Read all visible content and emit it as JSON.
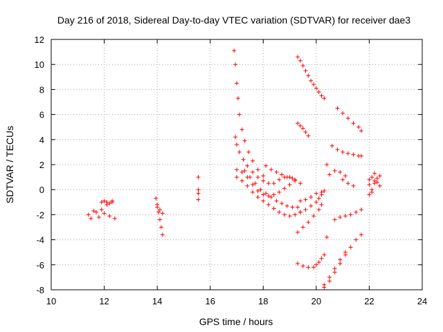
{
  "chart_data": {
    "type": "scatter",
    "title": "Day 216 of 2018, Sidereal Day-to-day VTEC variation (SDTVAR) for receiver dae3",
    "xlabel": "GPS time / hours",
    "ylabel": "SDTVAR / TECUs",
    "xlim": [
      10,
      24
    ],
    "ylim": [
      -8,
      12
    ],
    "xticks": [
      "10",
      "12",
      "14",
      "16",
      "18",
      "20",
      "22",
      "24"
    ],
    "yticks": [
      "-8",
      "-6",
      "-4",
      "-2",
      "0",
      "2",
      "4",
      "6",
      "8",
      "10",
      "12"
    ],
    "grid": true,
    "marker": "plus",
    "color": "#ff0000",
    "segments": [
      {
        "x": [
          11.4,
          11.6,
          11.8,
          12.0,
          12.2,
          12.4
        ],
        "y": [
          -2.0,
          -1.7,
          -2.2,
          -1.9,
          -2.1,
          -2.3
        ]
      },
      {
        "x": [
          11.5,
          11.7,
          11.9,
          12.1,
          12.3
        ],
        "y": [
          -2.3,
          -1.8,
          -1.6,
          -1.2,
          -1.0
        ]
      },
      {
        "x": [
          11.9,
          12.0,
          12.1,
          12.2,
          12.3
        ],
        "y": [
          -1.0,
          -0.9,
          -1.0,
          -1.1,
          -0.9
        ]
      },
      {
        "x": [
          13.95,
          14.0,
          14.05,
          14.1,
          14.15,
          14.2
        ],
        "y": [
          -0.7,
          -1.2,
          -1.8,
          -2.4,
          -3.0,
          -3.6
        ]
      },
      {
        "x": [
          14.0,
          14.1,
          14.2
        ],
        "y": [
          -1.4,
          -1.6,
          -1.9
        ]
      },
      {
        "x": [
          15.55,
          15.55,
          15.55,
          15.55
        ],
        "y": [
          1.0,
          0.0,
          -0.3,
          -0.8
        ]
      },
      {
        "x": [
          16.9,
          16.95,
          17.0,
          17.05,
          17.1,
          17.2,
          17.3,
          17.45,
          17.6,
          17.8,
          18.0
        ],
        "y": [
          11.1,
          10.0,
          8.5,
          7.3,
          6.0,
          4.8,
          3.9,
          3.0,
          2.3,
          1.6,
          1.1
        ]
      },
      {
        "x": [
          16.95,
          17.0,
          17.1,
          17.25,
          17.4,
          17.6,
          17.8,
          18.0,
          18.2
        ],
        "y": [
          4.2,
          3.6,
          3.0,
          2.4,
          1.9,
          1.4,
          1.0,
          0.7,
          0.5
        ]
      },
      {
        "x": [
          17.0,
          17.2,
          17.4,
          17.6,
          17.8,
          18.0,
          18.2,
          18.4,
          18.6,
          18.8,
          19.0,
          19.2
        ],
        "y": [
          1.6,
          1.4,
          1.0,
          0.4,
          -0.1,
          -0.4,
          -0.5,
          -0.4,
          -0.2,
          0.1,
          0.4,
          0.7
        ]
      },
      {
        "x": [
          17.0,
          17.2,
          17.4,
          17.6,
          17.8,
          18.0,
          18.2,
          18.4,
          18.6,
          18.8,
          19.0,
          19.2,
          19.4
        ],
        "y": [
          1.0,
          0.7,
          0.3,
          -0.2,
          -0.6,
          -0.9,
          -1.2,
          -1.5,
          -1.8,
          -2.0,
          -2.1,
          -2.0,
          -1.8
        ]
      },
      {
        "x": [
          17.3,
          17.5,
          17.7,
          17.9,
          18.1,
          18.3,
          18.5,
          18.7,
          18.9,
          19.1,
          19.3
        ],
        "y": [
          1.5,
          1.0,
          0.5,
          0.0,
          -0.3,
          -0.6,
          -0.9,
          -1.1,
          -1.3,
          -1.4,
          -1.4
        ]
      },
      {
        "x": [
          18.1,
          18.3,
          18.5,
          18.7,
          18.9,
          19.1
        ],
        "y": [
          1.9,
          1.6,
          1.4,
          1.2,
          1.0,
          0.9
        ]
      },
      {
        "x": [
          18.4,
          18.6,
          18.8,
          19.0,
          19.2,
          19.4
        ],
        "y": [
          0.5,
          0.8,
          1.0,
          1.0,
          0.8,
          0.5
        ]
      },
      {
        "x": [
          19.3,
          19.4,
          19.5,
          19.6,
          19.7,
          19.8,
          19.9,
          20.0,
          20.1,
          20.2,
          20.3
        ],
        "y": [
          10.6,
          10.3,
          9.9,
          9.5,
          9.1,
          8.7,
          8.4,
          8.1,
          7.8,
          7.5,
          7.3
        ]
      },
      {
        "x": [
          19.3,
          19.4,
          19.5,
          19.6,
          19.7
        ],
        "y": [
          5.3,
          5.1,
          4.9,
          4.6,
          4.3
        ]
      },
      {
        "x": [
          19.4,
          19.6,
          19.8,
          20.0,
          20.2
        ],
        "y": [
          -0.9,
          -0.8,
          -0.6,
          -0.3,
          -0.2
        ]
      },
      {
        "x": [
          19.4,
          19.6,
          19.8,
          20.0,
          20.1,
          20.2,
          20.3
        ],
        "y": [
          -1.8,
          -1.6,
          -1.3,
          -1.0,
          -0.7,
          -0.4,
          -0.1
        ]
      },
      {
        "x": [
          19.3,
          19.5,
          19.7,
          19.9,
          20.1,
          20.2
        ],
        "y": [
          -3.4,
          -3.0,
          -2.6,
          -2.1,
          -1.6,
          -1.2
        ]
      },
      {
        "x": [
          19.3,
          19.5,
          19.7,
          19.9,
          20.0,
          20.1,
          20.2,
          20.3
        ],
        "y": [
          -5.9,
          -6.1,
          -6.2,
          -6.2,
          -6.0,
          -5.8,
          -5.5,
          -5.2
        ]
      },
      {
        "x": [
          20.4,
          20.4
        ],
        "y": [
          2.0,
          -3.8
        ]
      },
      {
        "x": [
          20.3,
          20.5,
          20.7,
          20.9,
          21.1,
          21.3,
          21.5,
          21.7
        ],
        "y": [
          -7.8,
          -7.3,
          -6.6,
          -5.9,
          -5.2,
          -4.6,
          -4.0,
          -3.6
        ]
      },
      {
        "x": [
          20.3,
          20.5,
          20.7,
          20.9,
          21.1
        ],
        "y": [
          -7.6,
          -7.0,
          -6.3,
          -5.6,
          -5.0
        ]
      },
      {
        "x": [
          20.7,
          20.9,
          21.1,
          21.3,
          21.5,
          21.7
        ],
        "y": [
          -2.4,
          -2.2,
          -2.1,
          -2.0,
          -1.8,
          -1.6
        ]
      },
      {
        "x": [
          20.5,
          20.7,
          20.9,
          21.1
        ],
        "y": [
          1.2,
          1.5,
          1.4,
          1.1
        ]
      },
      {
        "x": [
          21.0,
          21.2,
          21.4
        ],
        "y": [
          0.8,
          0.5,
          0.3
        ]
      },
      {
        "x": [
          20.6,
          20.8,
          21.0,
          21.2,
          21.4,
          21.6,
          21.7
        ],
        "y": [
          3.5,
          3.2,
          3.0,
          2.9,
          2.8,
          2.7,
          2.7
        ]
      },
      {
        "x": [
          20.8,
          21.0,
          21.2,
          21.4,
          21.6,
          21.7
        ],
        "y": [
          6.5,
          6.1,
          5.7,
          5.3,
          5.0,
          4.7
        ]
      },
      {
        "x": [
          22.0,
          22.1,
          22.2,
          22.3,
          22.4
        ],
        "y": [
          0.4,
          1.0,
          1.3,
          0.6,
          1.1
        ]
      },
      {
        "x": [
          22.0,
          22.1,
          22.2,
          22.3,
          22.4
        ],
        "y": [
          -0.4,
          0.0,
          0.5,
          0.9,
          0.3
        ]
      },
      {
        "x": [
          22.0,
          22.1,
          22.2
        ],
        "y": [
          0.8,
          -0.2,
          0.7
        ]
      }
    ]
  }
}
